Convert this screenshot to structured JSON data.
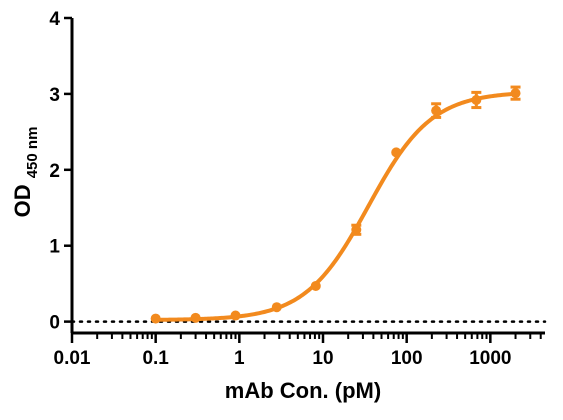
{
  "chart_data": {
    "type": "scatter",
    "xscale": "log",
    "x_ticks": [
      "0.01",
      "0.1",
      "1",
      "10",
      "100",
      "1000"
    ],
    "y_ticks": [
      "0",
      "1",
      "2",
      "3",
      "4"
    ],
    "xlim": [
      0.01,
      4500
    ],
    "ylim": [
      -0.15,
      4
    ],
    "xlabel": "mAb Con. (pM)",
    "ylabel_main": "OD",
    "ylabel_sub": "450 nm",
    "baseline_y": 0,
    "color": "#F28A1E",
    "points": [
      {
        "x": 0.1,
        "y": 0.04,
        "err": 0.0
      },
      {
        "x": 0.3,
        "y": 0.05,
        "err": 0.0
      },
      {
        "x": 0.9,
        "y": 0.08,
        "err": 0.0
      },
      {
        "x": 2.8,
        "y": 0.19,
        "err": 0.0
      },
      {
        "x": 8.2,
        "y": 0.47,
        "err": 0.0
      },
      {
        "x": 25,
        "y": 1.21,
        "err": 0.06
      },
      {
        "x": 75,
        "y": 2.23,
        "err": 0.0
      },
      {
        "x": 225,
        "y": 2.78,
        "err": 0.09
      },
      {
        "x": 680,
        "y": 2.92,
        "err": 0.1
      },
      {
        "x": 2000,
        "y": 3.01,
        "err": 0.08
      }
    ],
    "fit": {
      "model": "4PL",
      "bottom": 0.02,
      "top": 3.03,
      "ec50": 35,
      "hill": 1.15
    }
  }
}
